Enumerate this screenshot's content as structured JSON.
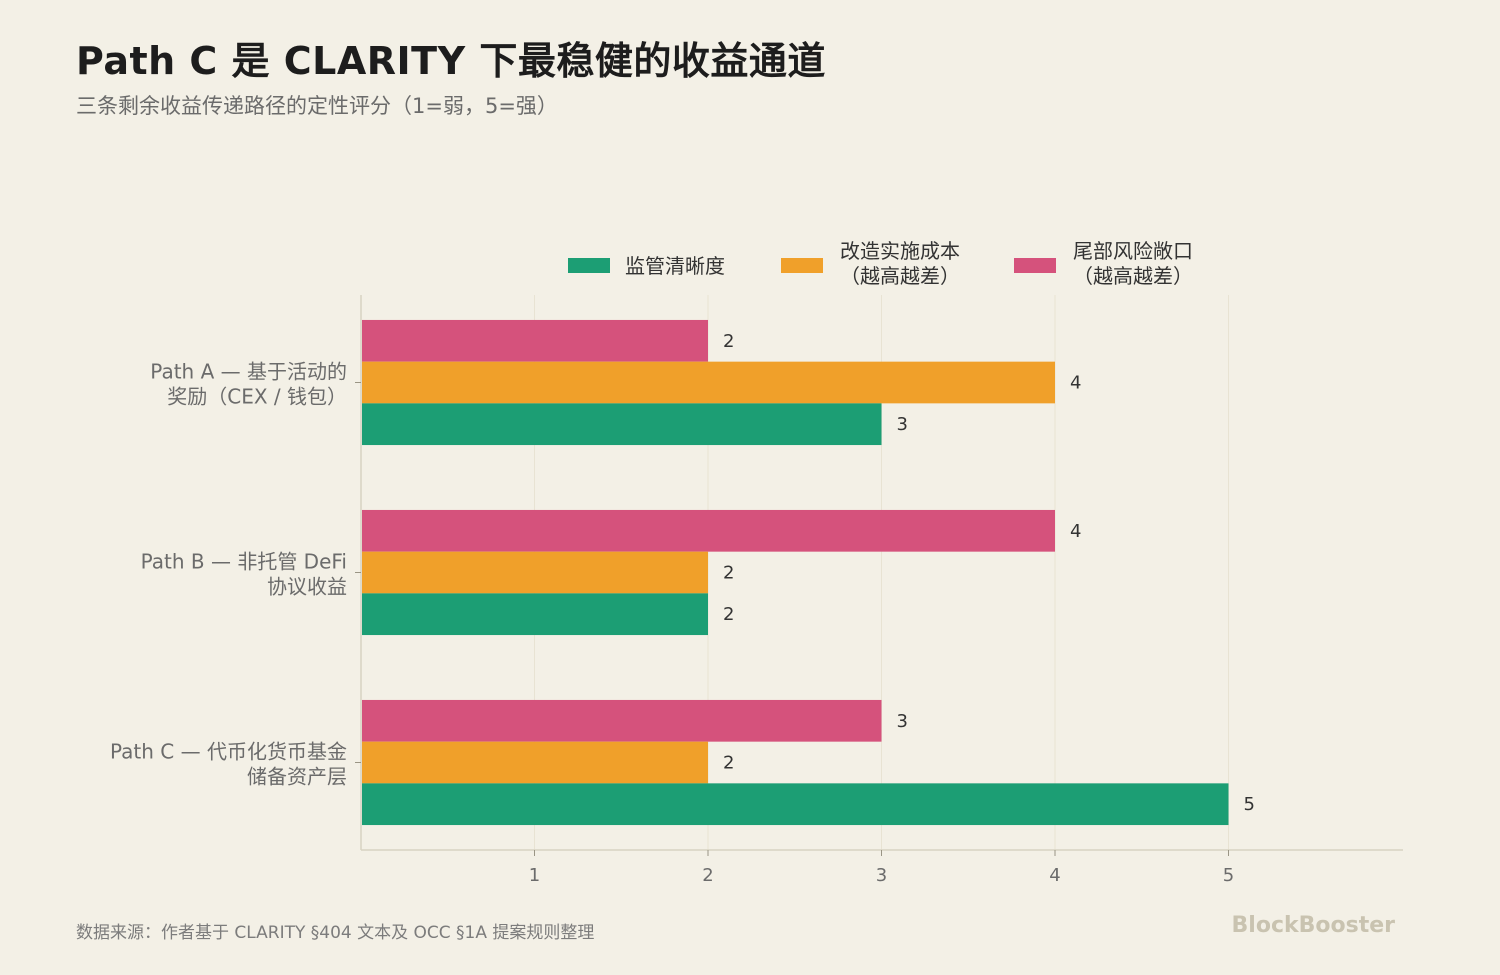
{
  "header": {
    "title": "Path C 是 CLARITY 下最稳健的收益通道",
    "subtitle": "三条剩余收益传递路径的定性评分（1=弱，5=强）"
  },
  "footer": {
    "source": "数据来源：作者基于 CLARITY §404 文本及 OCC §1A 提案规则整理",
    "brand": "BlockBooster"
  },
  "colors": {
    "series1": "#1c9e74",
    "series2": "#f0a02a",
    "series3": "#d5527c",
    "axis": "#d8d3c2",
    "grid": "#e8e3d3",
    "label": "#6b6b6b",
    "value": "#333333"
  },
  "chart_data": {
    "type": "bar",
    "orientation": "horizontal",
    "categories": [
      [
        "Path A — 基于活动的",
        "奖励（CEX / 钱包）"
      ],
      [
        "Path B — 非托管 DeFi",
        "协议收益"
      ],
      [
        "Path C — 代币化货币基金",
        "储备资产层"
      ]
    ],
    "series": [
      {
        "name": "监管清晰度",
        "legend_lines": [
          "监管清晰度"
        ],
        "color": "#1c9e74",
        "values": [
          3,
          2,
          5
        ]
      },
      {
        "name": "改造实施成本（越高越差）",
        "legend_lines": [
          "改造实施成本",
          "（越高越差）"
        ],
        "color": "#f0a02a",
        "values": [
          4,
          2,
          2
        ]
      },
      {
        "name": "尾部风险敞口（越高越差）",
        "legend_lines": [
          "尾部风险敞口",
          "（越高越差）"
        ],
        "color": "#d5527c",
        "values": [
          2,
          4,
          3
        ]
      }
    ],
    "xlim": [
      0,
      6
    ],
    "xticks": [
      1,
      2,
      3,
      4,
      5
    ],
    "grid": true,
    "legend": "top",
    "data_labels": true
  }
}
